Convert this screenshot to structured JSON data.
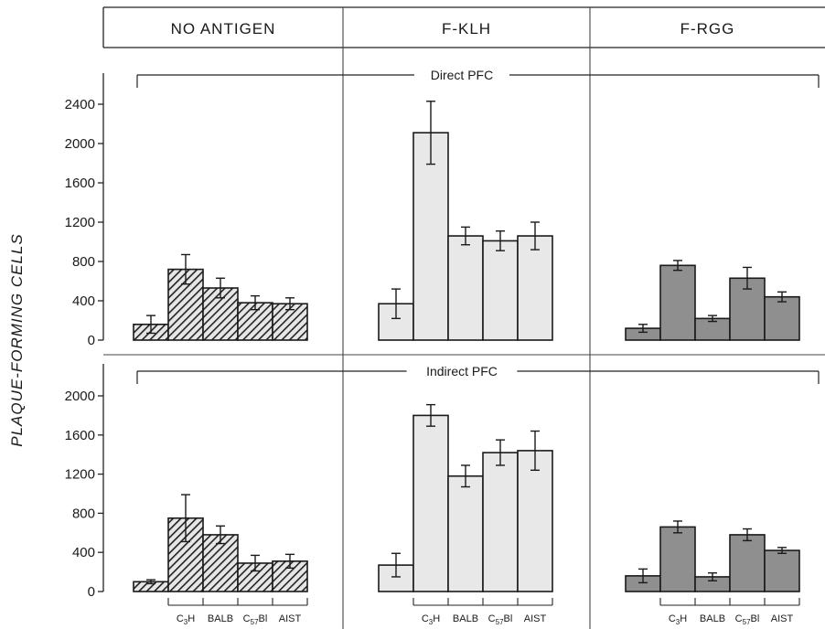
{
  "chart_data": {
    "type": "bar",
    "ylabel": "PLAQUE-FORMING CELLS",
    "groups": [
      "NO ANTIGEN",
      "F-KLH",
      "F-RGG"
    ],
    "categories": [
      "",
      "C3H",
      "BALB",
      "C57Bl",
      "AIST"
    ],
    "category_labels": [
      {
        "main": "",
        "sub": ""
      },
      {
        "main": "C",
        "sub": "3",
        "tail": "H"
      },
      {
        "main": "BALB",
        "sub": "",
        "tail": ""
      },
      {
        "main": "C",
        "sub": "57",
        "tail": "Bl"
      },
      {
        "main": "AIST",
        "sub": "",
        "tail": ""
      }
    ],
    "panels": [
      {
        "label": "Direct PFC",
        "yticks": [
          0,
          400,
          800,
          1200,
          1600,
          2000,
          2400
        ],
        "ylim": [
          0,
          2600
        ],
        "groups": [
          {
            "values": [
              160,
              720,
              530,
              380,
              370
            ],
            "errors": [
              90,
              150,
              100,
              70,
              60
            ]
          },
          {
            "values": [
              370,
              2110,
              1060,
              1010,
              1060
            ],
            "errors": [
              150,
              320,
              90,
              100,
              140
            ]
          },
          {
            "values": [
              120,
              760,
              220,
              630,
              440
            ],
            "errors": [
              40,
              50,
              30,
              110,
              50
            ]
          }
        ]
      },
      {
        "label": "Indirect PFC",
        "yticks": [
          0,
          400,
          800,
          1200,
          1600,
          2000
        ],
        "ylim": [
          0,
          2200
        ],
        "groups": [
          {
            "values": [
              100,
              750,
              580,
              290,
              310
            ],
            "errors": [
              20,
              240,
              90,
              80,
              70
            ]
          },
          {
            "values": [
              270,
              1800,
              1180,
              1420,
              1440
            ],
            "errors": [
              120,
              110,
              110,
              130,
              200
            ]
          },
          {
            "values": [
              160,
              660,
              150,
              580,
              420
            ],
            "errors": [
              70,
              60,
              40,
              60,
              30
            ]
          }
        ]
      }
    ]
  }
}
